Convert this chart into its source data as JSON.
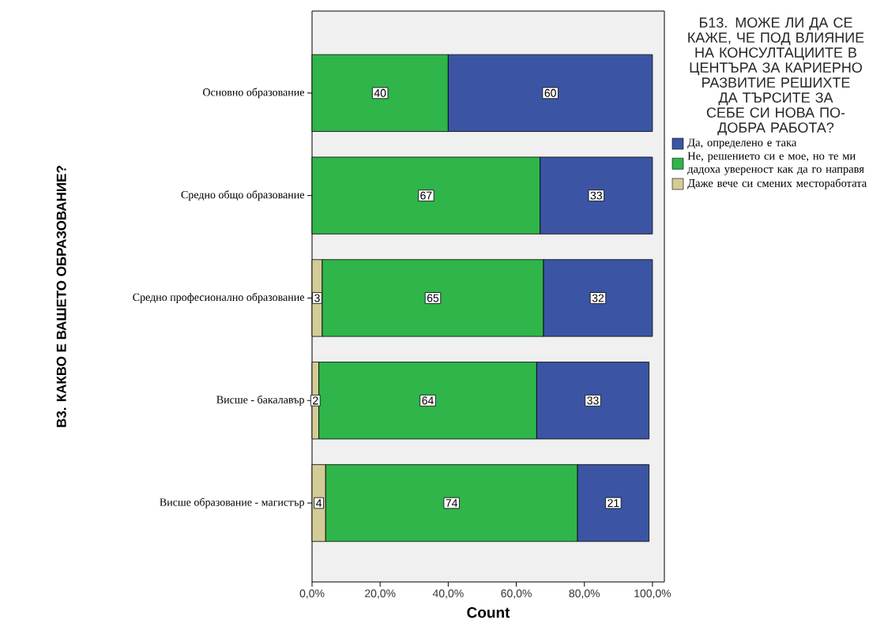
{
  "chart_data": {
    "type": "bar",
    "orientation": "horizontal",
    "stacked": true,
    "ylabel": "В3. КАКВО Е ВАШЕТО ОБРАЗОВАНИЕ?",
    "xlabel": "Count",
    "legend_title": "Б13. МОЖЕ ЛИ ДА СЕ КАЖЕ, ЧЕ ПОД ВЛИЯНИЕ НА КОНСУЛТАЦИИТЕ В ЦЕНТЪРА ЗА КАРИЕРНО РАЗВИТИЕ РЕШИХТЕ ДА ТЪРСИТЕ ЗА СЕБЕ СИ НОВА ПО-ДОБРА РАБОТА?",
    "legend": "right",
    "data_labels": true,
    "categories": [
      "Основно образование",
      "Средно общо образование",
      "Средно професионално образование",
      "Висше - бакалавър",
      "Висше образование - магистър"
    ],
    "series": [
      {
        "name": "Даже вече си смених местоработата",
        "color": "#d3cc96",
        "values": [
          null,
          null,
          3,
          2,
          4
        ]
      },
      {
        "name": "Не, решението си е мое, но те ми дадоха увереност как да го направя",
        "color": "#2fb54a",
        "values": [
          40,
          67,
          65,
          64,
          74
        ]
      },
      {
        "name": "Да, определено е така",
        "color": "#3b55a4",
        "values": [
          60,
          33,
          32,
          33,
          21
        ]
      }
    ],
    "xlim": [
      0,
      103.5
    ],
    "xticks": [
      {
        "value": 0,
        "label": "0,0%"
      },
      {
        "value": 20,
        "label": "20,0%"
      },
      {
        "value": 40,
        "label": "40,0%"
      },
      {
        "value": 60,
        "label": "60,0%"
      },
      {
        "value": 80,
        "label": "80,0%"
      },
      {
        "value": 100,
        "label": "100,0%"
      }
    ]
  }
}
